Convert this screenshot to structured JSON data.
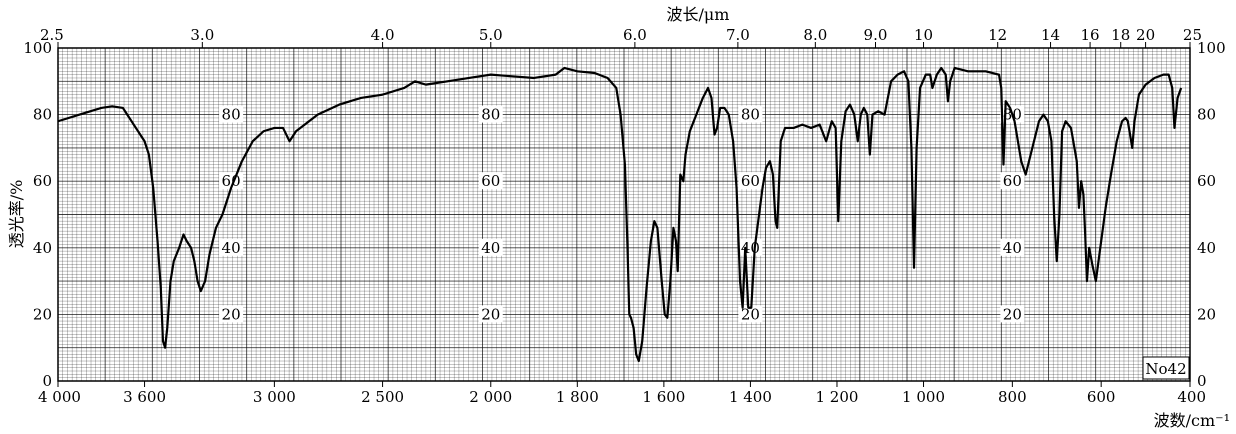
{
  "chart_data": {
    "type": "line",
    "top_axis_label": "波长/μm",
    "bottom_axis_label": "波数/cm⁻¹",
    "left_axis_label": "透光率/%",
    "sample_id": "No42",
    "y_ticks": [
      "0",
      "20",
      "40",
      "60",
      "80",
      "100"
    ],
    "inner_labels": [
      "80",
      "60",
      "40",
      "20"
    ],
    "top_ticks": [
      {
        "label": "2.5",
        "wn": 4000
      },
      {
        "label": "3.0",
        "wn": 3333
      },
      {
        "label": "4.0",
        "wn": 2500
      },
      {
        "label": "5.0",
        "wn": 2000
      },
      {
        "label": "6.0",
        "wn": 1667
      },
      {
        "label": "7.0",
        "wn": 1429
      },
      {
        "label": "8.0",
        "wn": 1250
      },
      {
        "label": "9.0",
        "wn": 1111
      },
      {
        "label": "10",
        "wn": 1000
      },
      {
        "label": "12",
        "wn": 833
      },
      {
        "label": "14",
        "wn": 714
      },
      {
        "label": "16",
        "wn": 625
      },
      {
        "label": "18",
        "wn": 556
      },
      {
        "label": "20",
        "wn": 500
      },
      {
        "label": "25",
        "wn": 400
      }
    ],
    "bottom_ticks": [
      {
        "label": "4 000",
        "wn": 4000
      },
      {
        "label": "3 600",
        "wn": 3600
      },
      {
        "label": "3 000",
        "wn": 3000
      },
      {
        "label": "2 500",
        "wn": 2500
      },
      {
        "label": "2 000",
        "wn": 2000
      },
      {
        "label": "1 800",
        "wn": 1800
      },
      {
        "label": "1 600",
        "wn": 1600
      },
      {
        "label": "1 400",
        "wn": 1400
      },
      {
        "label": "1 200",
        "wn": 1200
      },
      {
        "label": "1 000",
        "wn": 1000
      },
      {
        "label": "800",
        "wn": 800
      },
      {
        "label": "600",
        "wn": 600
      },
      {
        "label": "400",
        "wn": 400
      }
    ],
    "ylim": [
      0,
      100
    ],
    "grid": true,
    "series": [
      {
        "points": [
          [
            4000,
            78
          ],
          [
            3900,
            80
          ],
          [
            3800,
            82
          ],
          [
            3750,
            82.5
          ],
          [
            3700,
            82
          ],
          [
            3680,
            80
          ],
          [
            3640,
            76
          ],
          [
            3600,
            72
          ],
          [
            3580,
            68
          ],
          [
            3560,
            58
          ],
          [
            3540,
            42
          ],
          [
            3525,
            28
          ],
          [
            3515,
            12
          ],
          [
            3505,
            10
          ],
          [
            3495,
            16
          ],
          [
            3480,
            30
          ],
          [
            3465,
            36
          ],
          [
            3440,
            40
          ],
          [
            3420,
            44
          ],
          [
            3405,
            42
          ],
          [
            3385,
            40
          ],
          [
            3370,
            36
          ],
          [
            3355,
            30
          ],
          [
            3340,
            27
          ],
          [
            3320,
            30
          ],
          [
            3300,
            38
          ],
          [
            3270,
            46
          ],
          [
            3240,
            50
          ],
          [
            3200,
            58
          ],
          [
            3150,
            66
          ],
          [
            3100,
            72
          ],
          [
            3050,
            75
          ],
          [
            3000,
            76
          ],
          [
            2960,
            76
          ],
          [
            2930,
            72
          ],
          [
            2900,
            75
          ],
          [
            2860,
            77
          ],
          [
            2800,
            80
          ],
          [
            2700,
            83
          ],
          [
            2600,
            85
          ],
          [
            2500,
            86
          ],
          [
            2400,
            88
          ],
          [
            2350,
            90
          ],
          [
            2300,
            89
          ],
          [
            2200,
            90
          ],
          [
            2100,
            91
          ],
          [
            2000,
            92
          ],
          [
            1950,
            91.5
          ],
          [
            1900,
            91
          ],
          [
            1850,
            92
          ],
          [
            1830,
            94
          ],
          [
            1800,
            93
          ],
          [
            1760,
            92.5
          ],
          [
            1730,
            91
          ],
          [
            1710,
            88
          ],
          [
            1700,
            80
          ],
          [
            1690,
            65
          ],
          [
            1684,
            40
          ],
          [
            1680,
            20
          ],
          [
            1676,
            19
          ],
          [
            1670,
            16
          ],
          [
            1664,
            8
          ],
          [
            1658,
            6
          ],
          [
            1650,
            12
          ],
          [
            1640,
            28
          ],
          [
            1630,
            42
          ],
          [
            1622,
            48
          ],
          [
            1615,
            46
          ],
          [
            1605,
            30
          ],
          [
            1598,
            20
          ],
          [
            1592,
            19
          ],
          [
            1585,
            30
          ],
          [
            1578,
            46
          ],
          [
            1572,
            42
          ],
          [
            1568,
            33
          ],
          [
            1562,
            62
          ],
          [
            1555,
            60
          ],
          [
            1550,
            68
          ],
          [
            1540,
            75
          ],
          [
            1525,
            80
          ],
          [
            1510,
            85
          ],
          [
            1498,
            88
          ],
          [
            1490,
            85
          ],
          [
            1483,
            74
          ],
          [
            1477,
            76
          ],
          [
            1470,
            82
          ],
          [
            1460,
            82
          ],
          [
            1450,
            80
          ],
          [
            1440,
            72
          ],
          [
            1432,
            58
          ],
          [
            1424,
            30
          ],
          [
            1418,
            22
          ],
          [
            1412,
            40
          ],
          [
            1405,
            22
          ],
          [
            1398,
            22
          ],
          [
            1390,
            40
          ],
          [
            1380,
            50
          ],
          [
            1372,
            58
          ],
          [
            1364,
            64
          ],
          [
            1355,
            66
          ],
          [
            1348,
            62
          ],
          [
            1342,
            48
          ],
          [
            1338,
            46
          ],
          [
            1330,
            72
          ],
          [
            1320,
            76
          ],
          [
            1300,
            76
          ],
          [
            1280,
            77
          ],
          [
            1260,
            76
          ],
          [
            1240,
            77
          ],
          [
            1225,
            72
          ],
          [
            1212,
            78
          ],
          [
            1203,
            76
          ],
          [
            1197,
            48
          ],
          [
            1190,
            72
          ],
          [
            1180,
            81
          ],
          [
            1170,
            83
          ],
          [
            1160,
            80
          ],
          [
            1152,
            72
          ],
          [
            1145,
            80
          ],
          [
            1138,
            82
          ],
          [
            1130,
            80
          ],
          [
            1124,
            68
          ],
          [
            1118,
            80
          ],
          [
            1105,
            81
          ],
          [
            1090,
            80
          ],
          [
            1075,
            90
          ],
          [
            1060,
            92
          ],
          [
            1045,
            93
          ],
          [
            1035,
            90
          ],
          [
            1028,
            70
          ],
          [
            1022,
            34
          ],
          [
            1016,
            70
          ],
          [
            1008,
            88
          ],
          [
            995,
            92
          ],
          [
            985,
            92
          ],
          [
            980,
            88
          ],
          [
            970,
            92
          ],
          [
            960,
            94
          ],
          [
            950,
            92
          ],
          [
            945,
            84
          ],
          [
            940,
            90
          ],
          [
            930,
            94
          ],
          [
            900,
            93
          ],
          [
            860,
            93
          ],
          [
            830,
            92
          ],
          [
            825,
            88
          ],
          [
            820,
            65
          ],
          [
            815,
            84
          ],
          [
            805,
            82
          ],
          [
            795,
            78
          ],
          [
            780,
            66
          ],
          [
            770,
            62
          ],
          [
            755,
            70
          ],
          [
            740,
            78
          ],
          [
            730,
            80
          ],
          [
            720,
            78
          ],
          [
            712,
            72
          ],
          [
            706,
            50
          ],
          [
            700,
            36
          ],
          [
            694,
            50
          ],
          [
            688,
            75
          ],
          [
            680,
            78
          ],
          [
            668,
            76
          ],
          [
            655,
            66
          ],
          [
            650,
            52
          ],
          [
            645,
            60
          ],
          [
            640,
            56
          ],
          [
            636,
            44
          ],
          [
            632,
            30
          ],
          [
            627,
            40
          ],
          [
            620,
            35
          ],
          [
            612,
            30
          ],
          [
            600,
            42
          ],
          [
            590,
            52
          ],
          [
            578,
            62
          ],
          [
            565,
            72
          ],
          [
            553,
            78
          ],
          [
            545,
            79
          ],
          [
            540,
            78
          ],
          [
            535,
            74
          ],
          [
            530,
            70
          ],
          [
            525,
            78
          ],
          [
            515,
            86
          ],
          [
            500,
            89
          ],
          [
            480,
            91
          ],
          [
            460,
            92
          ],
          [
            448,
            92
          ],
          [
            440,
            88
          ],
          [
            435,
            76
          ],
          [
            428,
            85
          ],
          [
            420,
            88
          ]
        ]
      }
    ]
  }
}
